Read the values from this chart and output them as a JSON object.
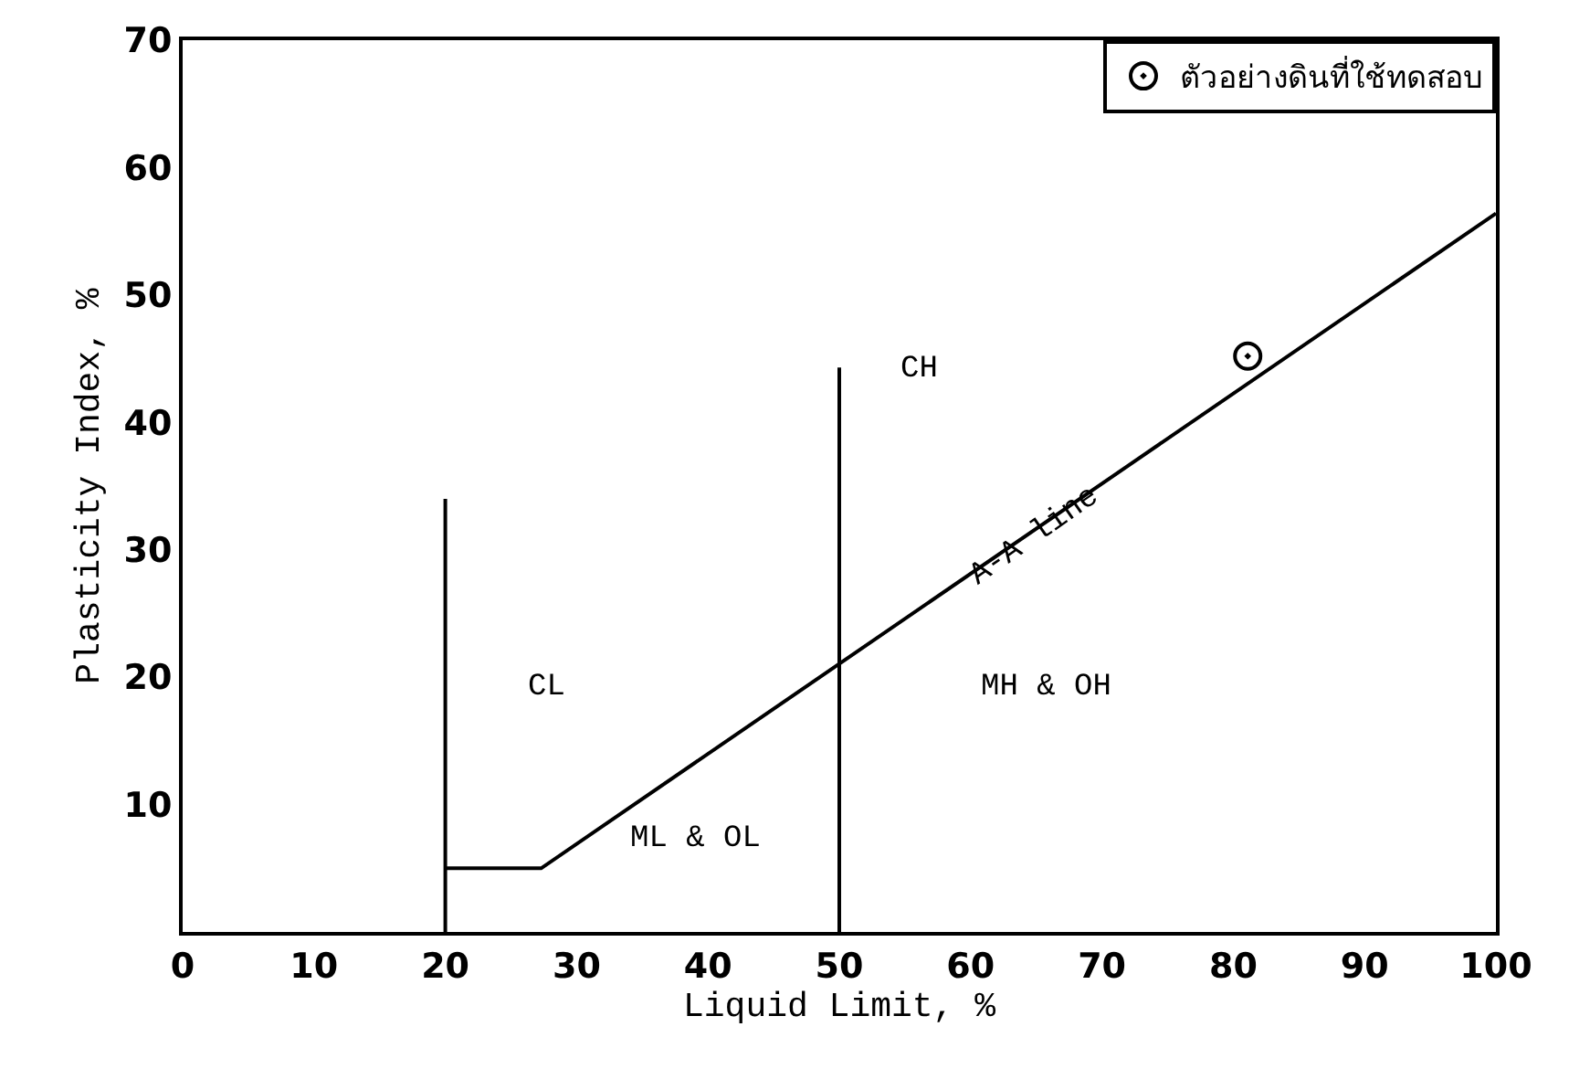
{
  "chart_data": {
    "type": "line",
    "xlabel": "Liquid Limit, %",
    "ylabel": "Plasticity Index, %",
    "xlim": [
      0,
      100
    ],
    "xticks": [
      0,
      10,
      20,
      30,
      40,
      50,
      60,
      70,
      80,
      90,
      100
    ],
    "ylim": [
      0,
      70
    ],
    "yticks": [
      10,
      20,
      30,
      40,
      50,
      60,
      70
    ],
    "legend": "top right",
    "series": [
      {
        "color": "#000000",
        "x": [
          20,
          27.3,
          100
        ],
        "values": [
          5,
          5,
          56.4
        ]
      },
      {
        "color": "#000000",
        "x": [
          20,
          20
        ],
        "values": [
          0,
          34
        ]
      },
      {
        "color": "#000000",
        "x": [
          50,
          50
        ],
        "values": [
          0,
          44.3
        ]
      },
      {
        "type": "scatter",
        "name": "ตัวอย่างดินที่ใช้ทดสอบ",
        "color": "#000000",
        "marker": "circle",
        "x": [
          81.1
        ],
        "values": [
          45.2
        ]
      }
    ],
    "annotations": [
      "CL",
      "CH",
      "ML & OL",
      "MH & OH",
      {
        "text": "A-A line",
        "x": 65,
        "y": 31
      }
    ]
  }
}
